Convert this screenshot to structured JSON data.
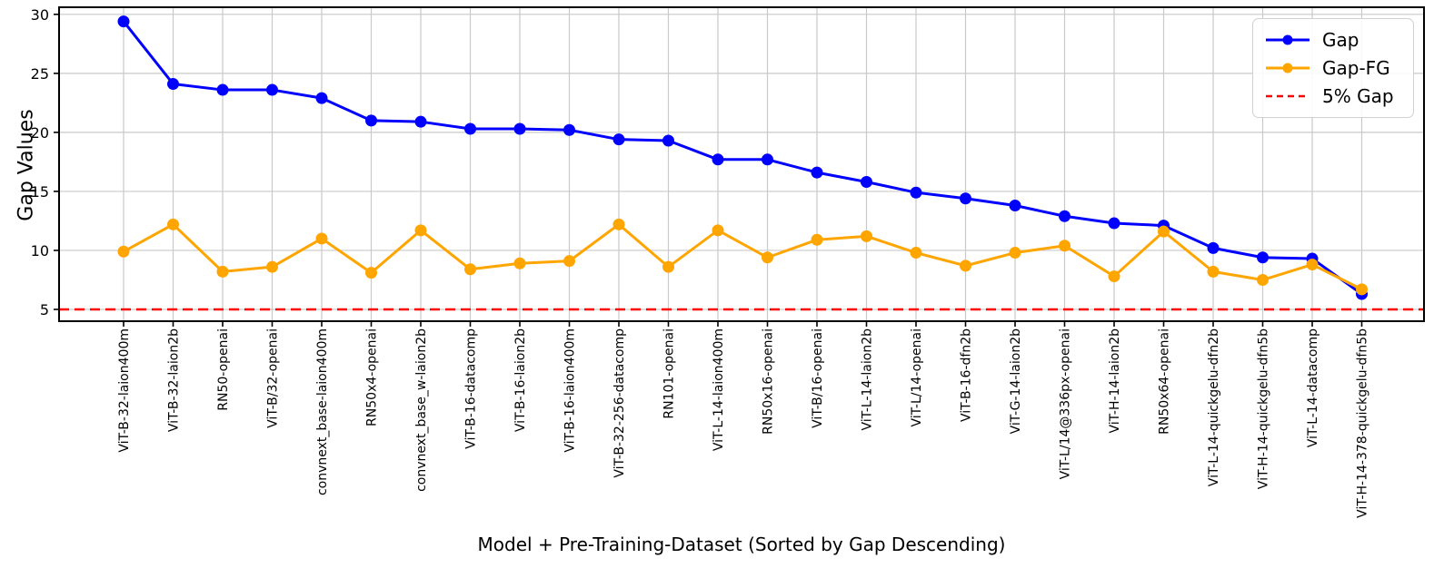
{
  "chart_data": {
    "type": "line",
    "title": "",
    "xlabel": "Model + Pre-Training-Dataset (Sorted by Gap Descending)",
    "ylabel": "Gap Values",
    "categories": [
      "ViT-B-32-laion400m",
      "ViT-B-32-laion2b",
      "RN50-openai",
      "ViT-B/32-openai",
      "convnext_base-laion400m",
      "RN50x4-openai",
      "convnext_base_w-laion2b",
      "ViT-B-16-datacomp",
      "ViT-B-16-laion2b",
      "ViT-B-16-laion400m",
      "ViT-B-32-256-datacomp",
      "RN101-openai",
      "ViT-L-14-laion400m",
      "RN50x16-openai",
      "ViT-B/16-openai",
      "ViT-L-14-laion2b",
      "ViT-L/14-openai",
      "ViT-B-16-dfn2b",
      "ViT-G-14-laion2b",
      "ViT-L/14@336px-openai",
      "ViT-H-14-laion2b",
      "RN50x64-openai",
      "ViT-L-14-quickgelu-dfn2b",
      "ViT-H-14-quickgelu-dfn5b",
      "ViT-L-14-datacomp",
      "ViT-H-14-378-quickgelu-dfn5b"
    ],
    "series": [
      {
        "name": "Gap",
        "color": "#0000ff",
        "marker": "circle",
        "line_style": "solid",
        "values": [
          29.4,
          24.1,
          23.6,
          23.6,
          22.9,
          21.0,
          20.9,
          20.3,
          20.3,
          20.2,
          19.4,
          19.3,
          17.7,
          17.7,
          16.6,
          15.8,
          14.9,
          14.4,
          13.8,
          12.9,
          12.3,
          12.1,
          10.2,
          9.4,
          9.3,
          6.3
        ]
      },
      {
        "name": "Gap-FG",
        "color": "#ffa500",
        "marker": "circle",
        "line_style": "solid",
        "values": [
          9.9,
          12.2,
          8.2,
          8.6,
          11.0,
          8.1,
          11.7,
          8.4,
          8.9,
          9.1,
          12.2,
          8.6,
          11.7,
          9.4,
          10.9,
          11.2,
          9.8,
          8.7,
          9.8,
          10.4,
          7.8,
          11.6,
          8.2,
          7.5,
          8.8,
          6.7
        ]
      }
    ],
    "reference_line": {
      "name": "5% Gap",
      "value": 5,
      "color": "#ff0000",
      "style": "dashed"
    },
    "ylim": [
      4.0,
      30.6
    ],
    "yticks": [
      5,
      10,
      15,
      20,
      25,
      30
    ],
    "grid": true,
    "legend_position": "upper right"
  }
}
